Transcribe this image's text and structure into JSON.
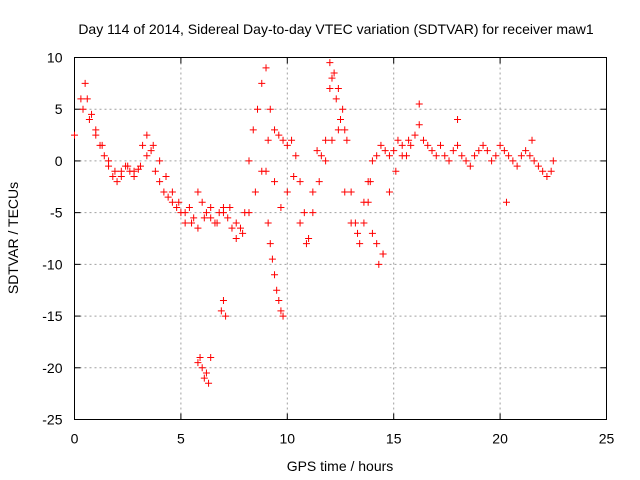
{
  "chart_data": {
    "type": "scatter",
    "title": "Day 114 of 2014, Sidereal Day-to-day VTEC variation (SDTVAR) for receiver maw1",
    "xlabel": "GPS time / hours",
    "ylabel": "SDTVAR / TECUs",
    "xlim": [
      0,
      25
    ],
    "ylim": [
      -25,
      10
    ],
    "xticks": [
      "0",
      "5",
      "10",
      "15",
      "20",
      "25"
    ],
    "yticks": [
      "10",
      "5",
      "0",
      "-5",
      "-10",
      "-15",
      "-20",
      "-25"
    ],
    "grid": true,
    "marker": "+",
    "color": "#ff0000",
    "series": [
      {
        "name": "maw1",
        "x": [
          0.0,
          0.3,
          0.5,
          0.6,
          0.8,
          1.0,
          1.2,
          1.4,
          1.6,
          1.8,
          2.0,
          2.2,
          2.4,
          2.6,
          2.8,
          3.0,
          3.2,
          3.4,
          3.6,
          3.8,
          4.0,
          4.2,
          4.4,
          4.6,
          4.8,
          5.0,
          5.2,
          5.4,
          5.6,
          5.8,
          6.0,
          6.2,
          6.4,
          6.6,
          6.8,
          7.0,
          7.2,
          7.4,
          7.6,
          7.8,
          8.0,
          8.2,
          8.4,
          8.6,
          8.8,
          9.0,
          9.2,
          9.4,
          9.6,
          9.8,
          10.0,
          10.2,
          10.4,
          10.6,
          10.8,
          11.0,
          11.2,
          11.4,
          11.6,
          11.8,
          12.0,
          12.2,
          12.4,
          12.6,
          12.8,
          13.0,
          13.2,
          13.4,
          13.6,
          13.8,
          14.0,
          14.2,
          14.4,
          14.6,
          14.8,
          15.0,
          15.2,
          15.4,
          15.6,
          15.8,
          16.0,
          16.2,
          16.4,
          16.6,
          16.8,
          17.0,
          17.2,
          17.4,
          17.6,
          17.8,
          18.0,
          18.2,
          18.4,
          18.6,
          18.8,
          19.0,
          19.2,
          19.4,
          19.6,
          19.8,
          20.0,
          20.2,
          20.4,
          20.6,
          20.8,
          21.0,
          21.2,
          21.4,
          21.6,
          21.8,
          22.0,
          22.2,
          22.4,
          22.5,
          0.4,
          0.7,
          1.0,
          1.3,
          1.6,
          1.9,
          2.2,
          2.5,
          2.8,
          3.1,
          3.4,
          3.7,
          4.0,
          4.3,
          4.6,
          4.9,
          5.2,
          5.5,
          5.8,
          6.1,
          6.4,
          6.7,
          7.0,
          7.3,
          7.6,
          7.9,
          8.2,
          8.5,
          8.8,
          9.1,
          9.4,
          9.7,
          10.0,
          10.3,
          10.6,
          10.9,
          11.2,
          11.5,
          11.8,
          12.1,
          12.4,
          12.7,
          13.0,
          13.3,
          13.6,
          13.9,
          14.2,
          14.5,
          14.8,
          15.1,
          15.4,
          15.7,
          5.8,
          5.9,
          6.0,
          6.1,
          6.2,
          6.3,
          6.4,
          6.9,
          7.0,
          7.1,
          9.0,
          9.1,
          9.2,
          9.3,
          9.4,
          9.5,
          9.6,
          9.7,
          9.8,
          12.0,
          12.1,
          12.3,
          12.5,
          12.7,
          13.8,
          14.0,
          14.3,
          14.5,
          16.2,
          18.0,
          20.3,
          21.5
        ],
        "y": [
          2.5,
          6.0,
          7.5,
          6.0,
          4.5,
          3.0,
          1.5,
          0.5,
          -0.5,
          -1.5,
          -2.0,
          -1.0,
          -0.5,
          -1.0,
          -1.5,
          -0.8,
          1.5,
          2.5,
          1.0,
          -1.0,
          -2.0,
          -3.0,
          -3.5,
          -4.0,
          -4.5,
          -5.0,
          -6.0,
          -4.5,
          -5.5,
          -3.0,
          -4.0,
          -5.0,
          -5.5,
          -6.0,
          -5.0,
          -4.5,
          -5.5,
          -6.5,
          -7.5,
          -6.5,
          -5.0,
          0.0,
          3.0,
          5.0,
          7.5,
          9.0,
          5.0,
          3.0,
          2.5,
          2.0,
          1.5,
          2.0,
          0.5,
          -2.0,
          -5.0,
          -7.5,
          -3.0,
          1.0,
          0.5,
          2.0,
          7.0,
          8.5,
          7.0,
          5.0,
          2.0,
          -3.0,
          -6.0,
          -8.0,
          -6.0,
          -2.0,
          0.0,
          0.5,
          1.5,
          1.0,
          0.5,
          1.0,
          2.0,
          1.5,
          0.5,
          1.5,
          2.5,
          3.5,
          2.0,
          1.5,
          1.0,
          0.5,
          1.5,
          0.5,
          0.0,
          1.0,
          1.5,
          0.5,
          0.0,
          -0.5,
          0.5,
          1.0,
          1.5,
          1.0,
          0.0,
          0.5,
          1.5,
          1.0,
          0.5,
          0.0,
          -0.5,
          0.5,
          1.0,
          0.5,
          0.0,
          -0.5,
          -1.0,
          -1.5,
          -1.0,
          0.0,
          5.0,
          4.0,
          2.5,
          1.5,
          0.0,
          -1.0,
          -1.5,
          -0.5,
          -1.0,
          -0.5,
          0.5,
          1.5,
          0.0,
          -1.5,
          -3.0,
          -4.0,
          -5.0,
          -6.0,
          -6.5,
          -5.5,
          -4.5,
          -6.0,
          -5.0,
          -4.5,
          -6.0,
          -7.0,
          -5.0,
          -3.0,
          -1.0,
          2.0,
          -2.0,
          -4.5,
          -3.0,
          -1.5,
          -6.0,
          -8.0,
          -5.0,
          -2.0,
          0.0,
          2.0,
          3.0,
          -3.0,
          -6.0,
          -7.0,
          -4.0,
          -2.0,
          -8.0,
          -9.0,
          -3.0,
          -1.0,
          0.5,
          2.0,
          -19.5,
          -19.0,
          -20.0,
          -21.0,
          -20.5,
          -21.5,
          -19.0,
          -14.5,
          -13.5,
          -15.0,
          -1.0,
          -6.0,
          -8.0,
          -9.5,
          -11.0,
          -12.5,
          -13.5,
          -14.5,
          -15.0,
          9.5,
          8.0,
          6.0,
          4.0,
          3.0,
          -4.0,
          -7.0,
          -10.0,
          -9.0,
          5.5,
          4.0,
          -4.0,
          2.0
        ]
      }
    ]
  }
}
